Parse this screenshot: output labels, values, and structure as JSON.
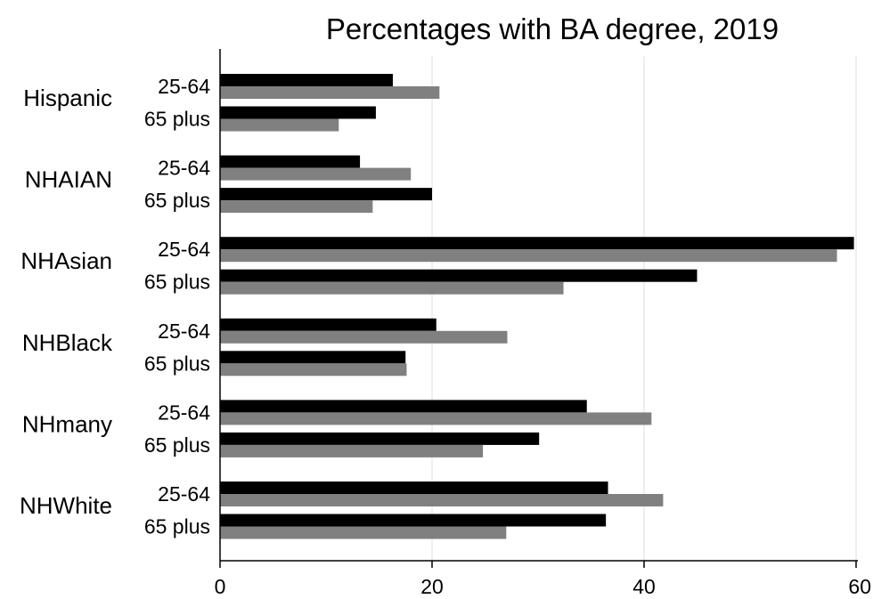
{
  "chart_data": {
    "type": "bar",
    "orientation": "horizontal",
    "title": "Percentages with BA degree, 2019",
    "xlim": [
      0,
      60
    ],
    "x_ticks": [
      0,
      20,
      40,
      60
    ],
    "grid": "vertical gridlines",
    "legend": "none",
    "colors": {
      "bar_dark": "#000000",
      "bar_light": "#808080",
      "grid": "#e3ecec"
    },
    "groups": [
      {
        "label": "Hispanic",
        "subgroups": [
          {
            "label": "25-64",
            "values": [
              16.3,
              20.7
            ]
          },
          {
            "label": "65 plus",
            "values": [
              14.7,
              11.2
            ]
          }
        ]
      },
      {
        "label": "NHAIAN",
        "subgroups": [
          {
            "label": "25-64",
            "values": [
              13.2,
              18.0
            ]
          },
          {
            "label": "65 plus",
            "values": [
              20.0,
              14.4
            ]
          }
        ]
      },
      {
        "label": "NHAsian",
        "subgroups": [
          {
            "label": "25-64",
            "values": [
              59.8,
              58.2
            ]
          },
          {
            "label": "65 plus",
            "values": [
              45.0,
              32.4
            ]
          }
        ]
      },
      {
        "label": "NHBlack",
        "subgroups": [
          {
            "label": "25-64",
            "values": [
              20.4,
              27.1
            ]
          },
          {
            "label": "65 plus",
            "values": [
              17.5,
              17.6
            ]
          }
        ]
      },
      {
        "label": "NHmany",
        "subgroups": [
          {
            "label": "25-64",
            "values": [
              34.6,
              40.7
            ]
          },
          {
            "label": "65 plus",
            "values": [
              30.1,
              24.8
            ]
          }
        ]
      },
      {
        "label": "NHWhite",
        "subgroups": [
          {
            "label": "25-64",
            "values": [
              36.6,
              41.8
            ]
          },
          {
            "label": "65 plus",
            "values": [
              36.4,
              27.0
            ]
          }
        ]
      }
    ]
  }
}
